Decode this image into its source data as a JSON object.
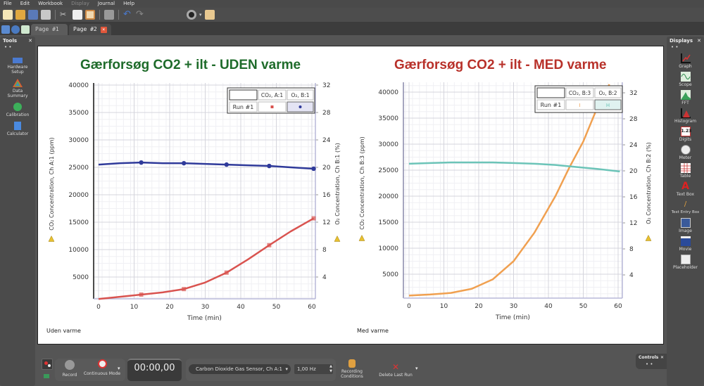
{
  "menu": {
    "items": [
      "File",
      "Edit",
      "Workbook",
      "Display",
      "Journal",
      "Help"
    ],
    "disabled": [
      "Display"
    ]
  },
  "toolbar": {
    "icons": [
      "new-icon",
      "open-icon",
      "save-icon",
      "print-icon",
      "cut-icon",
      "copy-icon",
      "paste-icon",
      "screenshot-icon",
      "undo-icon",
      "redo-icon",
      "camera-icon",
      "layout-icon"
    ]
  },
  "tabs": [
    {
      "label": "Page #1",
      "active": false
    },
    {
      "label": "Page #2",
      "active": true,
      "close": "×"
    }
  ],
  "tools_panel": {
    "title": "Tools",
    "close": "✕",
    "dots": "• •",
    "items": [
      {
        "label": "Hardware Setup"
      },
      {
        "label": "Data Summary"
      },
      {
        "label": "Calibration"
      },
      {
        "label": "Calculator"
      }
    ]
  },
  "displays_panel": {
    "title": "Displays",
    "close": "✕",
    "dots": "• •",
    "items": [
      {
        "label": "Graph"
      },
      {
        "label": "Scope"
      },
      {
        "label": "FFT"
      },
      {
        "label": "Histogram"
      },
      {
        "label": "Digits"
      },
      {
        "label": "Meter"
      },
      {
        "label": "Table"
      },
      {
        "label": "Text Box"
      },
      {
        "label": "Text Entry Box"
      },
      {
        "label": "Image"
      },
      {
        "label": "Movie"
      },
      {
        "label": "Placeholder"
      }
    ]
  },
  "page": {
    "left_title": "Gærforsøg CO2 + ilt - UDEN varme",
    "left_title_color": "#1e6b2a",
    "right_title": "Gærforsøg CO2 + ilt - MED varme",
    "right_title_color": "#b8312a",
    "left_note": "Uden varme",
    "right_note": "Med varme"
  },
  "chart_data": [
    {
      "type": "line",
      "title": "Gærforsøg CO2 + ilt - UDEN varme",
      "xlabel": "Time (min)",
      "ylabel": "CO₂ Concentration, Ch A:1 (ppm)",
      "y2label": "O₂ Concentration, Ch B:1 (%)",
      "x_ticks": [
        0,
        10,
        20,
        30,
        40,
        50,
        60
      ],
      "y_ticks": [
        5000,
        10000,
        15000,
        20000,
        25000,
        30000,
        35000,
        40000
      ],
      "y2_ticks": [
        4,
        8,
        12,
        16,
        20,
        24,
        28,
        32
      ],
      "xlim": [
        -1.5,
        61.5
      ],
      "ylim": [
        1000,
        40000
      ],
      "y2lim": [
        0.8,
        32
      ],
      "grid": true,
      "legend": {
        "row": "Run #1",
        "columns": [
          "CO₂, A:1",
          "O₂, B:1"
        ]
      },
      "series": [
        {
          "name": "CO₂, A:1",
          "axis": "left",
          "color": "#d9534f",
          "x": [
            0,
            6,
            12,
            18,
            24,
            30,
            36,
            42,
            48,
            54,
            60.5
          ],
          "values": [
            1000,
            1400,
            1800,
            2200,
            2800,
            4000,
            5800,
            8200,
            10800,
            13300,
            15700
          ]
        },
        {
          "name": "O₂, B:1",
          "axis": "right",
          "color": "#2f3a9a",
          "x": [
            0,
            6,
            12,
            18,
            24,
            30,
            36,
            42,
            48,
            54,
            60.5
          ],
          "values": [
            20.4,
            20.6,
            20.7,
            20.6,
            20.6,
            20.5,
            20.4,
            20.3,
            20.2,
            20.0,
            19.8
          ]
        }
      ]
    },
    {
      "type": "line",
      "title": "Gærforsøg CO2 + ilt - MED varme",
      "xlabel": "Time (min)",
      "ylabel": "CO₂ Concentration, Ch B:3 (ppm)",
      "y2label": "O₂ Concentration, Ch B:2 (%)",
      "x_ticks": [
        0,
        10,
        20,
        30,
        40,
        50,
        60
      ],
      "y_ticks": [
        5000,
        10000,
        15000,
        20000,
        25000,
        30000,
        35000,
        40000
      ],
      "y2_ticks": [
        4,
        8,
        12,
        16,
        20,
        24,
        28,
        32
      ],
      "xlim": [
        -1.5,
        61.5
      ],
      "ylim": [
        800,
        41500
      ],
      "y2lim": [
        0.6,
        33
      ],
      "grid": true,
      "legend": {
        "row": "Run #1",
        "columns": [
          "CO₂, B:3",
          "O₂, B:2"
        ]
      },
      "series": [
        {
          "name": "CO₂, B:3",
          "axis": "left",
          "color": "#f0a050",
          "x": [
            0,
            6,
            12,
            18,
            24,
            30,
            36,
            42,
            46,
            50,
            54,
            57.5
          ],
          "values": [
            900,
            1100,
            1400,
            2200,
            4000,
            7500,
            13000,
            20000,
            25500,
            30500,
            37000,
            41500
          ]
        },
        {
          "name": "O₂, B:2",
          "axis": "right",
          "color": "#6cc4b8",
          "x": [
            0,
            6,
            12,
            18,
            24,
            30,
            36,
            42,
            48,
            54,
            60.5
          ],
          "values": [
            21.1,
            21.2,
            21.3,
            21.3,
            21.3,
            21.2,
            21.1,
            20.9,
            20.6,
            20.3,
            19.9
          ]
        }
      ]
    }
  ],
  "controls": {
    "title": "Controls",
    "close": "✕",
    "dots": "• •",
    "record_label": "Record",
    "mode_label": "Continuous Mode",
    "timer": "00:00,00",
    "sensor": "Carbon Dioxide Gas Sensor, Ch A:1",
    "rate": "1,00 Hz",
    "recording_conditions_label": "Recording Conditions",
    "delete_last_run_label": "Delete Last Run"
  }
}
